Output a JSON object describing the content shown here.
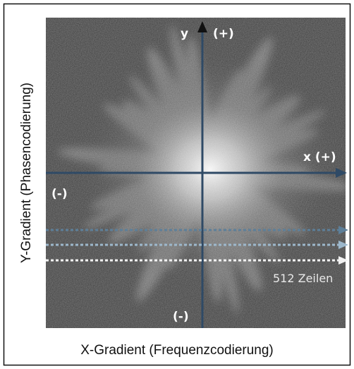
{
  "image_labels": {
    "y_axis": "y",
    "y_plus": "(+)",
    "x_plus": "x (+)",
    "x_minus": "(-)",
    "y_minus": "(-)",
    "lines": "512 Zeilen"
  },
  "axis_titles": {
    "y": "Y-Gradient (Phasencodierung)",
    "x": "X-Gradient (Frequenzcodierung)"
  }
}
